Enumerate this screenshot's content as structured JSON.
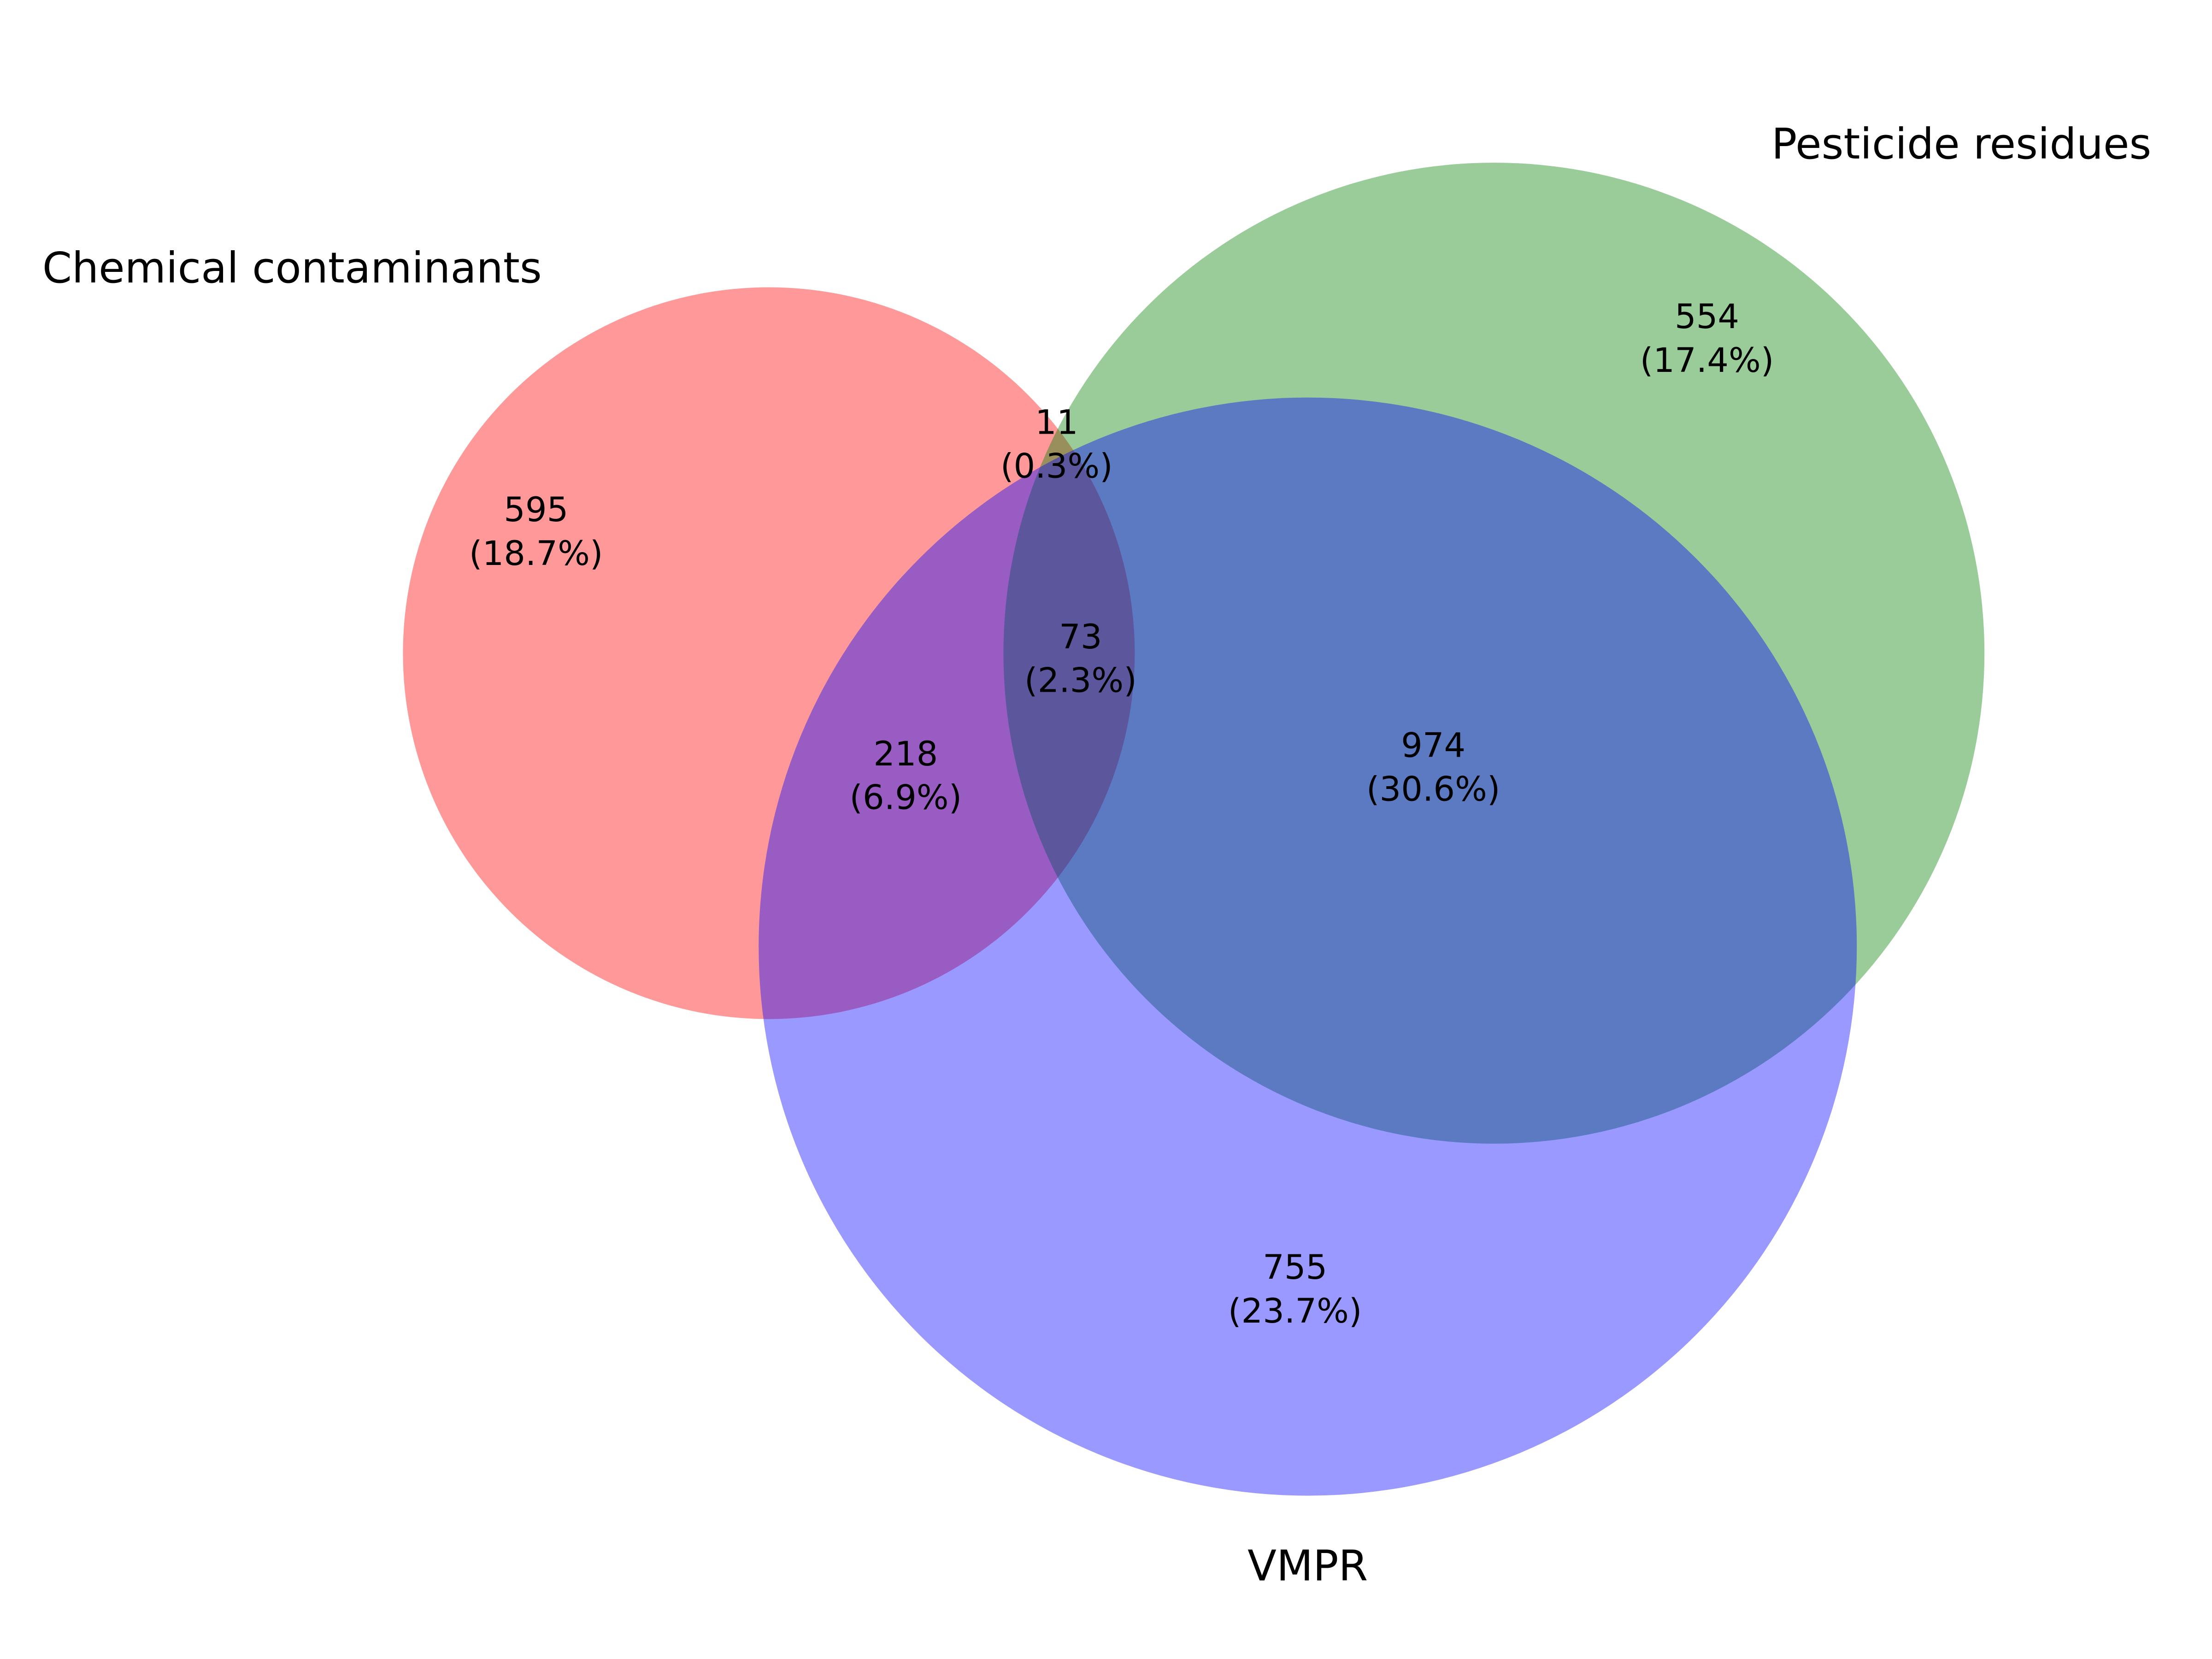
{
  "chart_data": {
    "type": "venn",
    "sets": [
      {
        "name": "Chemical contaminants",
        "color": "#ff0000"
      },
      {
        "name": "Pesticide residues",
        "color": "#008000"
      },
      {
        "name": "VMPR",
        "color": "#0000ff"
      }
    ],
    "values": [
      595,
      554,
      11,
      755,
      218,
      974,
      73
    ],
    "percent_labels": [
      "(18.7%)",
      "(17.4%)",
      "(0.3%)",
      "(23.7%)",
      "(6.9%)",
      "(30.6%)",
      "(2.3%)"
    ],
    "alpha": 0.4
  }
}
